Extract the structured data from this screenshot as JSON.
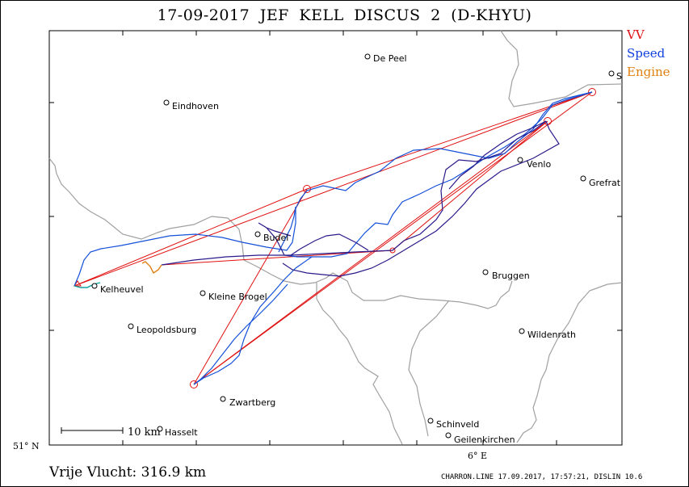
{
  "title": "17-09-2017    JEF KELL    DISCUS 2 (D-KHYU)",
  "legend": [
    {
      "label": "VV",
      "color": "#e01010"
    },
    {
      "label": "Speed",
      "color": "#1040e0"
    },
    {
      "label": "Engine",
      "color": "#e08010"
    }
  ],
  "footer": {
    "distance": "Vrije Vlucht:  316.9 km",
    "credits": "CHARRON.LINE 17.09.2017, 17:57:21, DISLIN 10.6"
  },
  "axes": {
    "lat_label": "51° N",
    "lon_label": "6° E"
  },
  "scale_bar": "10 km",
  "places": [
    {
      "name": "De Peel"
    },
    {
      "name": "Eindhoven"
    },
    {
      "name": "Venlo"
    },
    {
      "name": "Grefrat"
    },
    {
      "name": "Budel"
    },
    {
      "name": "Kelheuvel"
    },
    {
      "name": "Kleine Brogel"
    },
    {
      "name": "Bruggen"
    },
    {
      "name": "Leopoldsburg"
    },
    {
      "name": "Wildenrath"
    },
    {
      "name": "Zwartberg"
    },
    {
      "name": "Hasselt"
    },
    {
      "name": "Schinveld"
    },
    {
      "name": "Geilenkirchen"
    },
    {
      "name": "S"
    }
  ],
  "colors": {
    "track": "#2a1a8a",
    "track_fast": "#1450d8",
    "task": "#e01010",
    "engine": "#e08010",
    "border": "#a0a0a0",
    "frame": "#000000"
  }
}
